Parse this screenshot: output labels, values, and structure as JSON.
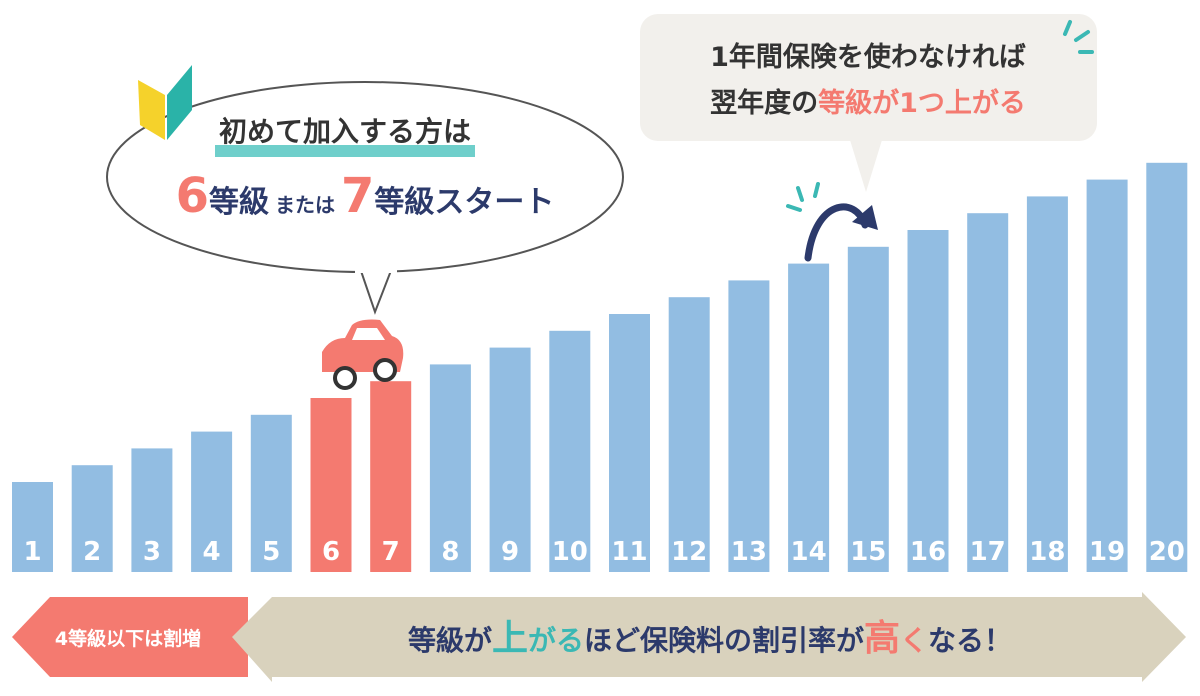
{
  "bubble_left": {
    "line1": "初めて加入する方は",
    "num1": "6",
    "unit1": "等級",
    "mid": "または",
    "num2": "7",
    "unit2": "等級スタート"
  },
  "bubble_right": {
    "line1": "1年間保険を使わなければ",
    "line2_a": "翌年度の",
    "line2_b": "等級が1つ上がる"
  },
  "grades": [
    {
      "label": "1",
      "color": "#92bde2"
    },
    {
      "label": "2",
      "color": "#92bde2"
    },
    {
      "label": "3",
      "color": "#92bde2"
    },
    {
      "label": "4",
      "color": "#92bde2"
    },
    {
      "label": "5",
      "color": "#92bde2"
    },
    {
      "label": "6",
      "color": "#f47a70"
    },
    {
      "label": "7",
      "color": "#f47a70"
    },
    {
      "label": "8",
      "color": "#92bde2"
    },
    {
      "label": "9",
      "color": "#92bde2"
    },
    {
      "label": "10",
      "color": "#92bde2"
    },
    {
      "label": "11",
      "color": "#92bde2"
    },
    {
      "label": "12",
      "color": "#92bde2"
    },
    {
      "label": "13",
      "color": "#92bde2"
    },
    {
      "label": "14",
      "color": "#92bde2"
    },
    {
      "label": "15",
      "color": "#92bde2"
    },
    {
      "label": "16",
      "color": "#92bde2"
    },
    {
      "label": "17",
      "color": "#92bde2"
    },
    {
      "label": "18",
      "color": "#92bde2"
    },
    {
      "label": "19",
      "color": "#92bde2"
    },
    {
      "label": "20",
      "color": "#92bde2"
    }
  ],
  "arrows": {
    "left": "4等級以下は割増",
    "right": [
      "等級が",
      "上",
      "がる",
      "ほど保険料の割引率が",
      "高",
      "く",
      "なる！"
    ]
  }
}
